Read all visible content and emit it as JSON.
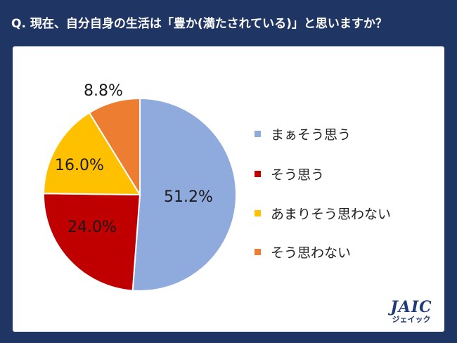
{
  "header": {
    "title": "Q. 現在、自分自身の生活は「豊か(満たされている)」と思いますか？"
  },
  "chart_data": {
    "type": "pie",
    "title": "Q. 現在、自分自身の生活は「豊か(満たされている)」と思いますか？",
    "categories": [
      "まぁそう思う",
      "そう思う",
      "あまりそう思わない",
      "そう思わない"
    ],
    "values": [
      51.2,
      24.0,
      16.0,
      8.8
    ],
    "labels": [
      "51.2%",
      "24.0%",
      "16.0%",
      "8.8%"
    ],
    "colors": [
      "#8faadc",
      "#c00000",
      "#ffc000",
      "#ed7d31"
    ],
    "start": "12 o'clock",
    "direction": "clockwise",
    "legend_position": "right"
  },
  "logo": {
    "main": "JAIC",
    "sub": "ジェイック"
  }
}
